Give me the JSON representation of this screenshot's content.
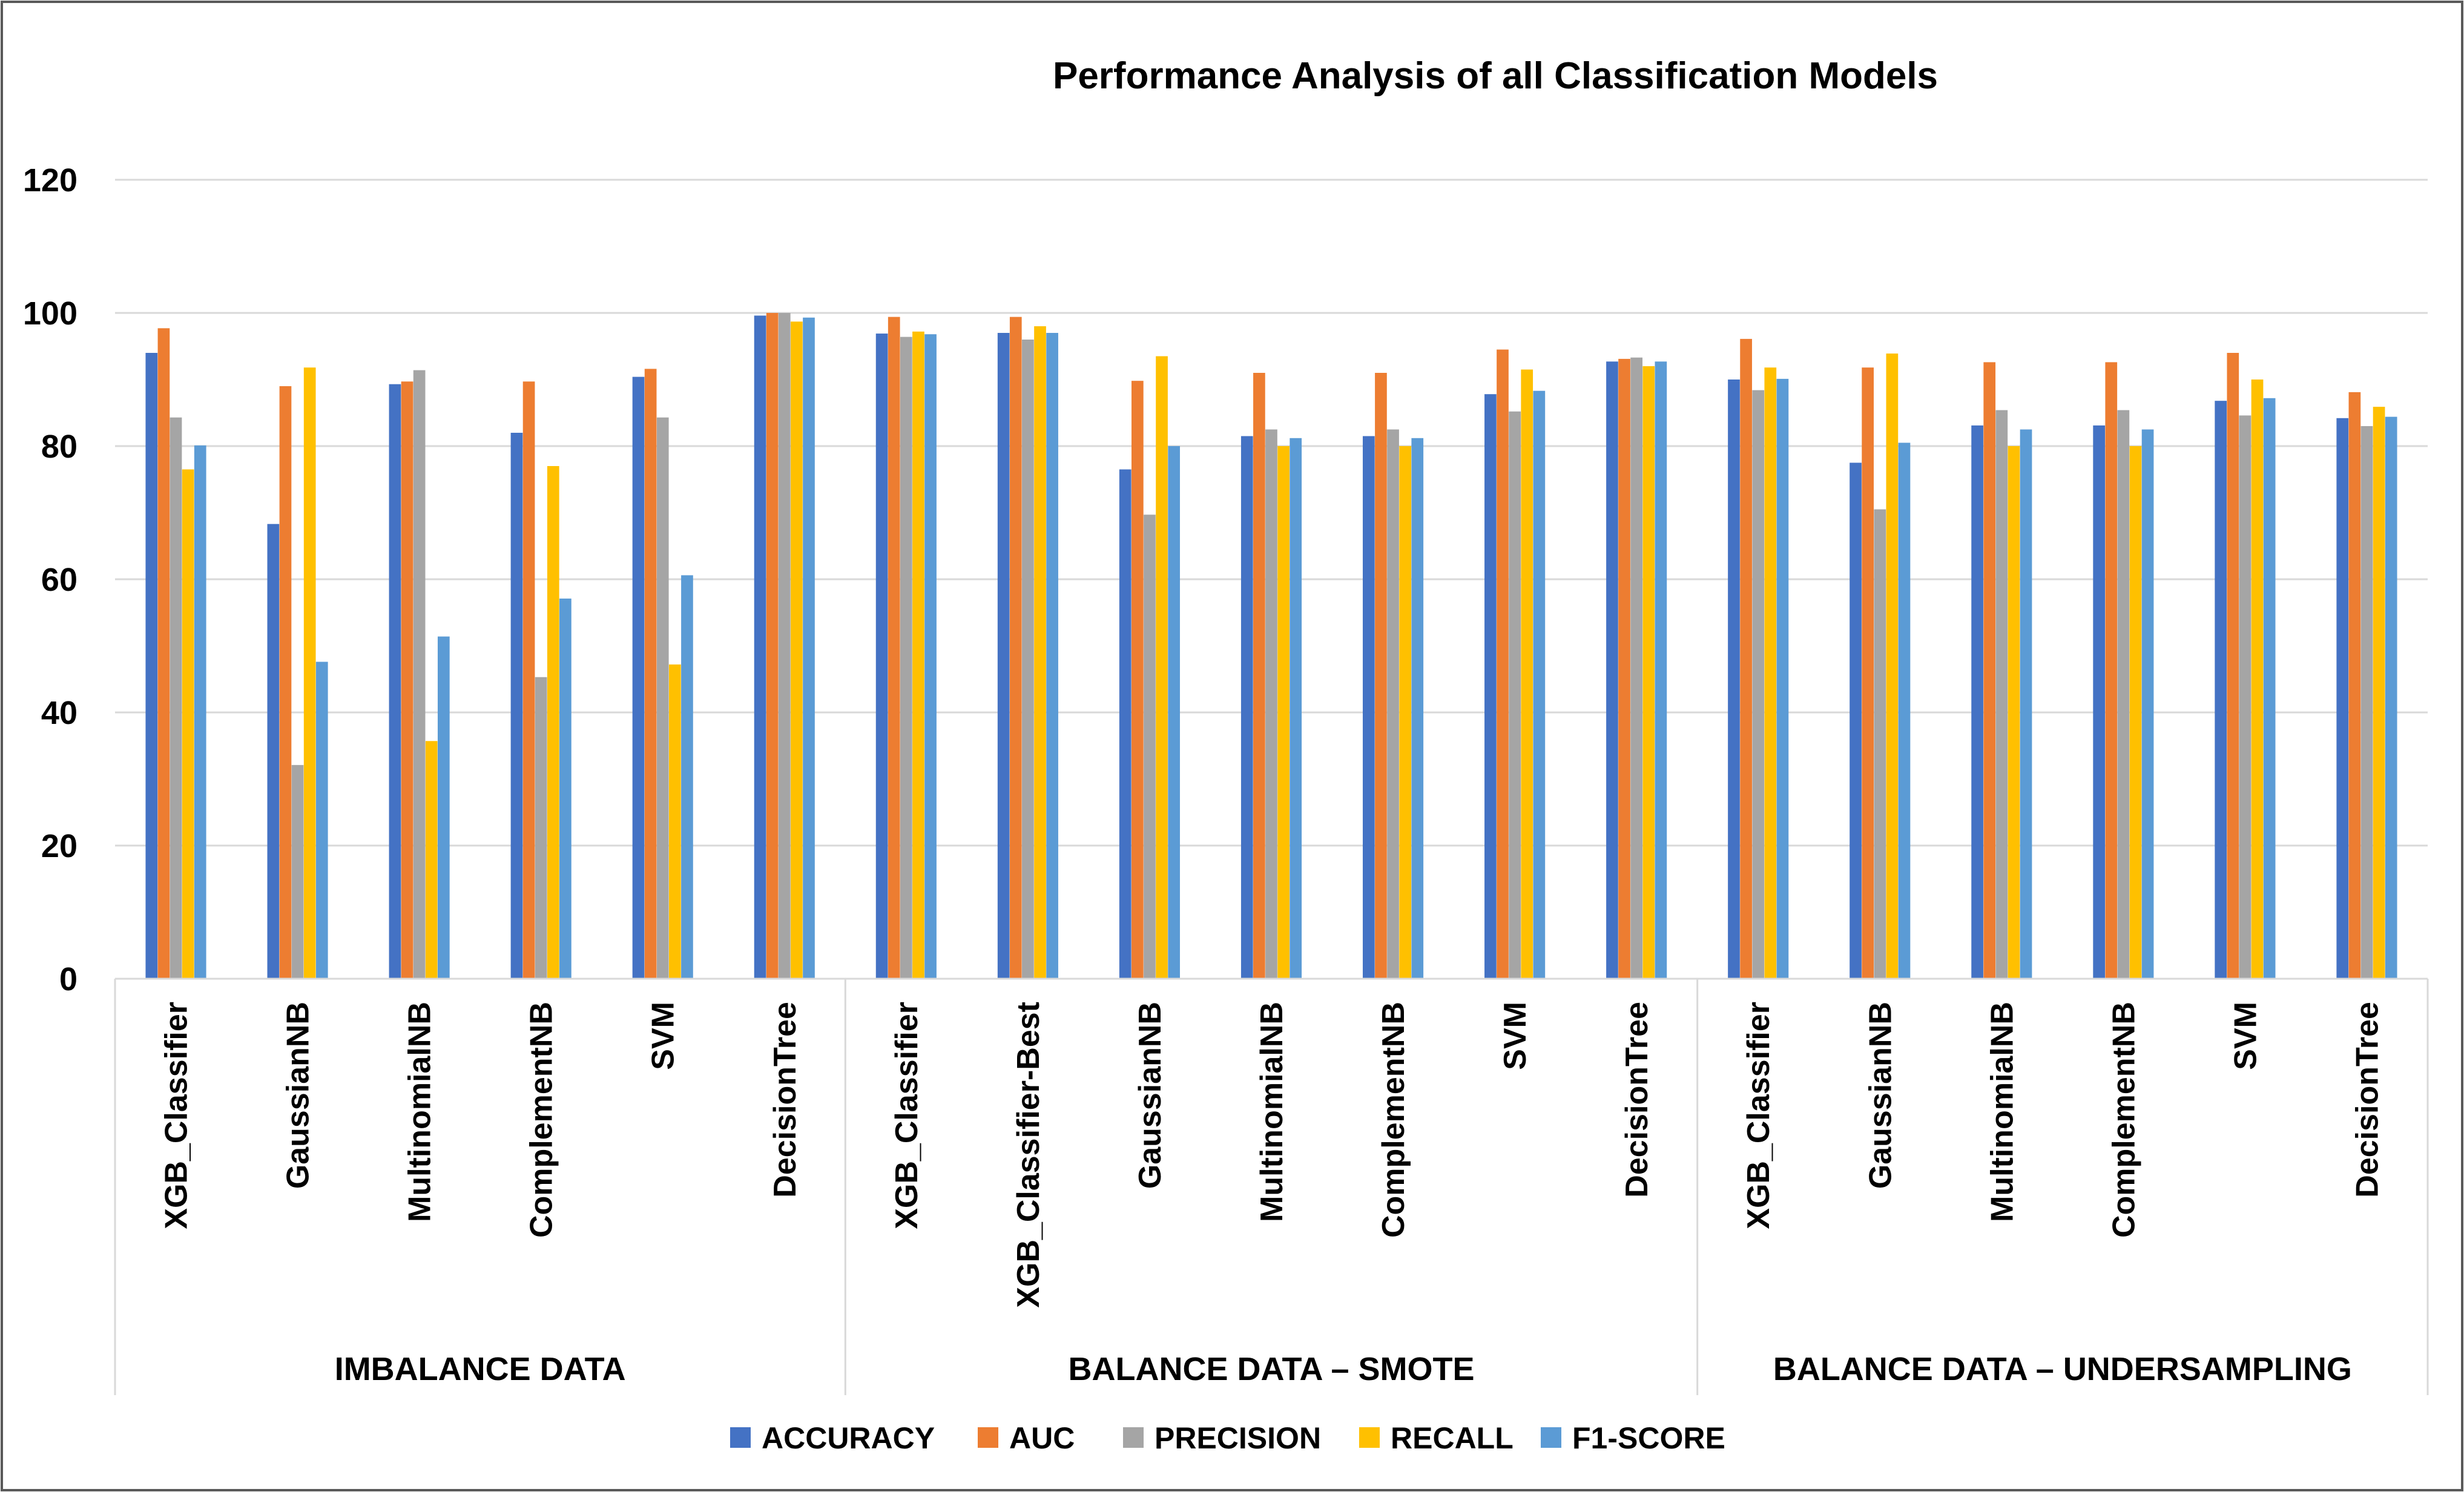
{
  "chart_data": {
    "type": "bar",
    "title": "Performance Analysis of all Classification Models",
    "ylim": [
      0,
      120
    ],
    "yticks": [
      "0",
      "20",
      "40",
      "60",
      "80",
      "100",
      "120"
    ],
    "grid": "horizontal",
    "legend_position": "bottom",
    "groups": [
      {
        "label": "IMBALANCE DATA",
        "categories": [
          "XGB_Classifier",
          "GaussianNB",
          "MultinomialNB",
          "ComplementNB",
          "SVM",
          "DecisionTree"
        ]
      },
      {
        "label": "BALANCE DATA – SMOTE",
        "categories": [
          "XGB_Classifier",
          "XGB_Classifier-Best",
          "GaussianNB",
          "MultinomialNB",
          "ComplementNB",
          "SVM",
          "DecisionTree"
        ]
      },
      {
        "label": "BALANCE DATA – UNDERSAMPLING",
        "categories": [
          "XGB_Classifier",
          "GaussianNB",
          "MultinomialNB",
          "ComplementNB",
          "SVM",
          "DecisionTree"
        ]
      }
    ],
    "series": [
      {
        "name": "ACCURACY",
        "color": "#4472C4",
        "values": [
          94,
          68.3,
          89.3,
          82,
          90.4,
          99.6,
          96.9,
          97,
          76.5,
          81.5,
          81.5,
          87.8,
          92.7,
          90,
          77.5,
          83.1,
          83.1,
          86.8,
          84.2
        ]
      },
      {
        "name": "AUC",
        "color": "#ED7D31",
        "values": [
          97.7,
          89,
          89.7,
          89.7,
          91.6,
          100,
          99.4,
          99.4,
          89.8,
          91,
          91,
          94.5,
          93.1,
          96.1,
          91.8,
          92.6,
          92.6,
          94,
          88.1
        ]
      },
      {
        "name": "PRECISION",
        "color": "#A5A5A5",
        "values": [
          84.3,
          32.1,
          91.4,
          45.3,
          84.3,
          100,
          96.4,
          96,
          69.7,
          82.5,
          82.5,
          85.2,
          93.3,
          88.4,
          70.5,
          85.4,
          85.4,
          84.6,
          83
        ]
      },
      {
        "name": "RECALL",
        "color": "#FFC000",
        "values": [
          76.5,
          91.8,
          35.7,
          77,
          47.2,
          98.7,
          97.2,
          98,
          93.5,
          80,
          80,
          91.5,
          92,
          91.8,
          93.9,
          80,
          80,
          90,
          85.9
        ]
      },
      {
        "name": "F1-SCORE",
        "color": "#5B9BD5",
        "values": [
          80.1,
          47.6,
          51.4,
          57.1,
          60.6,
          99.3,
          96.8,
          97,
          80,
          81.2,
          81.2,
          88.3,
          92.7,
          90.1,
          80.5,
          82.5,
          82.5,
          87.2,
          84.4
        ]
      }
    ]
  }
}
